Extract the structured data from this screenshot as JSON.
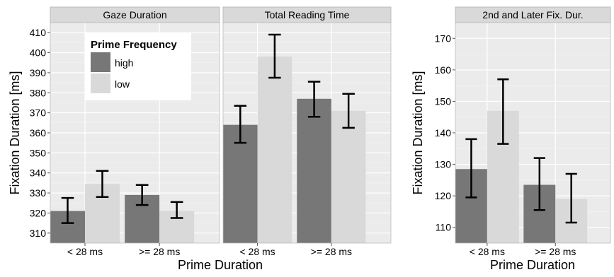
{
  "colors": {
    "high": "#777777",
    "low": "#d9d9d9",
    "panel_bg": "#ebebeb",
    "strip_bg": "#d9d9d9",
    "grid": "#ffffff",
    "errorbar": "#000000",
    "axis_text": "#000000"
  },
  "legend": {
    "title": "Prime Frequency",
    "items": [
      {
        "key": "high",
        "label": "high"
      },
      {
        "key": "low",
        "label": "low"
      }
    ],
    "placement": "inside top-left of first panel"
  },
  "chart_data": [
    {
      "type": "bar",
      "facet_group": "left",
      "shared_y_axis": true,
      "ylabel": "Fixation Duration [ms]",
      "xlabel": "Prime Duration",
      "categories": [
        "< 28 ms",
        ">= 28 ms"
      ],
      "ylim": [
        305,
        415
      ],
      "yticks": [
        310,
        320,
        330,
        340,
        350,
        360,
        370,
        380,
        390,
        400,
        410
      ],
      "grid": true,
      "panels": [
        {
          "title": "Gaze Duration",
          "series": [
            {
              "name": "high",
              "values": [
                321,
                329
              ],
              "err_low": [
                315,
                324
              ],
              "err_high": [
                327.5,
                334
              ]
            },
            {
              "name": "low",
              "values": [
                334.5,
                321
              ],
              "err_low": [
                328,
                317.5
              ],
              "err_high": [
                341,
                325.5
              ]
            }
          ]
        },
        {
          "title": "Total Reading Time",
          "series": [
            {
              "name": "high",
              "values": [
                364,
                377
              ],
              "err_low": [
                355,
                368
              ],
              "err_high": [
                373.5,
                385.5
              ]
            },
            {
              "name": "low",
              "values": [
                398,
                371
              ],
              "err_low": [
                387.5,
                362.5
              ],
              "err_high": [
                409,
                379.5
              ]
            }
          ]
        }
      ]
    },
    {
      "type": "bar",
      "facet_group": "right",
      "ylabel": "Fixation Duration [ms]",
      "xlabel": "Prime Duration",
      "categories": [
        "< 28 ms",
        ">= 28 ms"
      ],
      "ylim": [
        105,
        175
      ],
      "yticks": [
        110,
        120,
        130,
        140,
        150,
        160,
        170
      ],
      "grid": true,
      "panels": [
        {
          "title": "2nd and Later Fix. Dur.",
          "series": [
            {
              "name": "high",
              "values": [
                128.5,
                123.5
              ],
              "err_low": [
                119.5,
                115.5
              ],
              "err_high": [
                138,
                132
              ]
            },
            {
              "name": "low",
              "values": [
                147,
                119
              ],
              "err_low": [
                136.5,
                111.5
              ],
              "err_high": [
                157,
                127
              ]
            }
          ]
        }
      ]
    }
  ]
}
